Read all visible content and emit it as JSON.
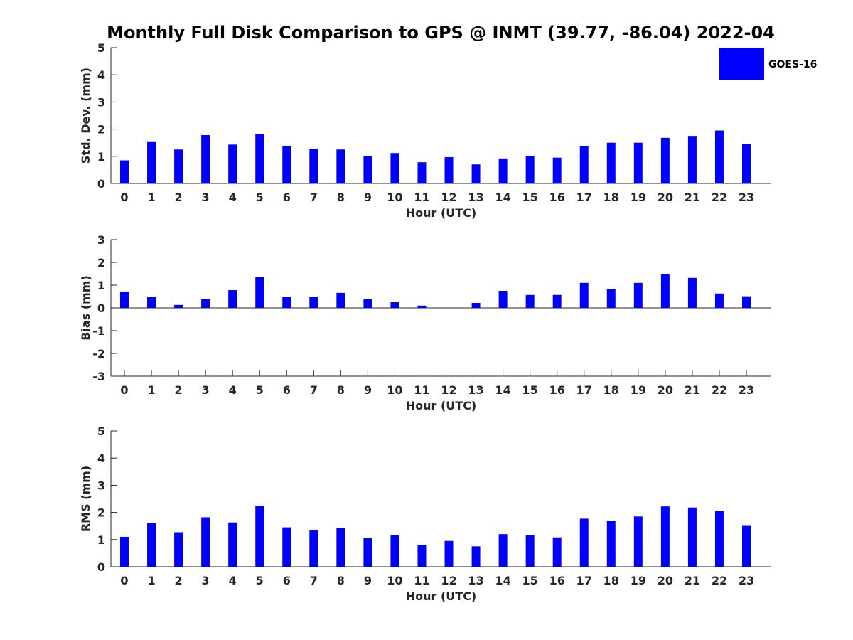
{
  "figure": {
    "title": "Monthly Full Disk Comparison to GPS @ INMT (39.77, -86.04) 2022-04",
    "legend": {
      "label": "GOES-16",
      "placement": "top-right"
    },
    "bar_color": "#0000ff"
  },
  "chart_data": [
    {
      "type": "bar",
      "series": [
        {
          "name": "GOES-16",
          "values": [
            0.85,
            1.55,
            1.25,
            1.78,
            1.43,
            1.83,
            1.38,
            1.28,
            1.25,
            1.0,
            1.12,
            0.78,
            0.97,
            0.7,
            0.92,
            1.02,
            0.95,
            1.38,
            1.5,
            1.5,
            1.68,
            1.75,
            1.95,
            1.45
          ]
        }
      ],
      "categories": [
        "0",
        "1",
        "2",
        "3",
        "4",
        "5",
        "6",
        "7",
        "8",
        "9",
        "10",
        "11",
        "12",
        "13",
        "14",
        "15",
        "16",
        "17",
        "18",
        "19",
        "20",
        "21",
        "22",
        "23"
      ],
      "xlabel": "Hour (UTC)",
      "ylabel": "Std. Dev. (mm)",
      "ylim": [
        0,
        5
      ],
      "yticks": [
        "0",
        "1",
        "2",
        "3",
        "4",
        "5"
      ],
      "grid": false
    },
    {
      "type": "bar",
      "series": [
        {
          "name": "GOES-16",
          "values": [
            0.72,
            0.48,
            0.13,
            0.38,
            0.78,
            1.35,
            0.48,
            0.48,
            0.66,
            0.38,
            0.25,
            0.1,
            0.0,
            0.22,
            0.75,
            0.57,
            0.57,
            1.1,
            0.82,
            1.1,
            1.47,
            1.32,
            0.63,
            0.51
          ]
        }
      ],
      "categories": [
        "0",
        "1",
        "2",
        "3",
        "4",
        "5",
        "6",
        "7",
        "8",
        "9",
        "10",
        "11",
        "12",
        "13",
        "14",
        "15",
        "16",
        "17",
        "18",
        "19",
        "20",
        "21",
        "22",
        "23"
      ],
      "xlabel": "Hour (UTC)",
      "ylabel": "Bias (mm)",
      "ylim": [
        -3,
        3
      ],
      "yticks": [
        "-3",
        "-2",
        "-1",
        "0",
        "1",
        "2",
        "3"
      ],
      "grid": false
    },
    {
      "type": "bar",
      "series": [
        {
          "name": "GOES-16",
          "values": [
            1.1,
            1.6,
            1.27,
            1.82,
            1.63,
            2.25,
            1.45,
            1.35,
            1.42,
            1.05,
            1.17,
            0.8,
            0.95,
            0.75,
            1.2,
            1.17,
            1.08,
            1.77,
            1.68,
            1.85,
            2.22,
            2.18,
            2.05,
            1.53
          ]
        }
      ],
      "categories": [
        "0",
        "1",
        "2",
        "3",
        "4",
        "5",
        "6",
        "7",
        "8",
        "9",
        "10",
        "11",
        "12",
        "13",
        "14",
        "15",
        "16",
        "17",
        "18",
        "19",
        "20",
        "21",
        "22",
        "23"
      ],
      "xlabel": "Hour (UTC)",
      "ylabel": "RMS (mm)",
      "ylim": [
        0,
        5
      ],
      "yticks": [
        "0",
        "1",
        "2",
        "3",
        "4",
        "5"
      ],
      "grid": false
    }
  ]
}
